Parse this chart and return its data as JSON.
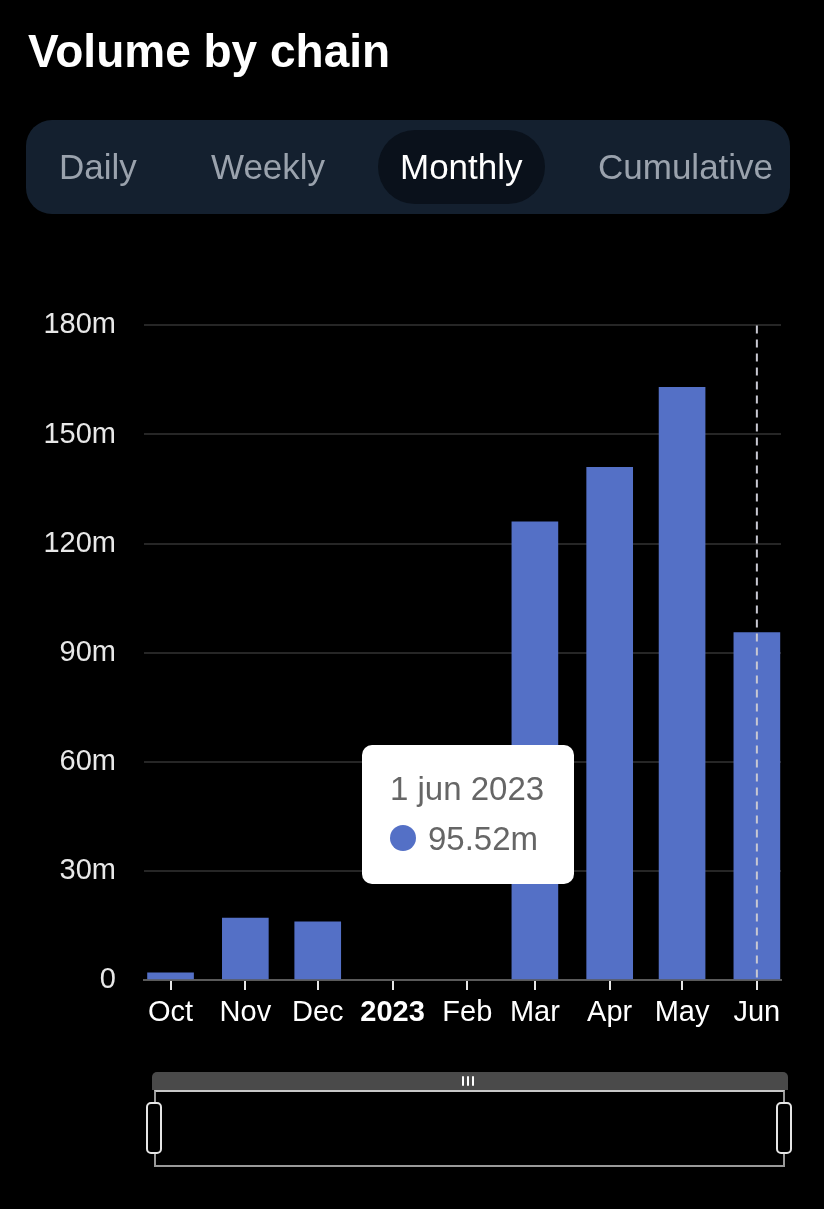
{
  "chart_data": {
    "type": "bar",
    "title": "Volume by chain",
    "x": [
      "2022-10-01",
      "2022-11-01",
      "2022-12-01",
      "2023-01-01",
      "2023-02-01",
      "2023-03-01",
      "2023-04-01",
      "2023-05-01",
      "2023-06-01"
    ],
    "values": [
      2,
      17,
      16,
      null,
      null,
      126,
      141,
      163,
      95.52
    ],
    "color": "#5470c6",
    "xlim": [
      "2022-09-20",
      "2023-06-11"
    ],
    "xticks": [
      {
        "value": "2022-10-01",
        "label": "Oct"
      },
      {
        "value": "2022-11-01",
        "label": "Nov"
      },
      {
        "value": "2022-12-01",
        "label": "Dec"
      },
      {
        "value": "2023-01-01",
        "label": "2023"
      },
      {
        "value": "2023-02-01",
        "label": "Feb"
      },
      {
        "value": "2023-03-01",
        "label": "Mar"
      },
      {
        "value": "2023-04-01",
        "label": "Apr"
      },
      {
        "value": "2023-05-01",
        "label": "May"
      },
      {
        "value": "2023-06-01",
        "label": "Jun"
      }
    ],
    "ylim": [
      0,
      180
    ],
    "yticks": [
      0,
      {
        "value": 30,
        "label": "30m"
      },
      {
        "value": 60,
        "label": "60m"
      },
      {
        "value": 90,
        "label": "90m"
      },
      {
        "value": 120,
        "label": "120m"
      },
      {
        "value": 150,
        "label": "150m"
      },
      {
        "value": 180,
        "label": "180m"
      }
    ],
    "grid": "y",
    "ref_lines": [
      {
        "axis": "x",
        "value": "2023-06-01",
        "color": "#c8c8d2",
        "line_style": "dashed"
      }
    ],
    "annotations": [
      "Daily",
      "Weekly",
      "Monthly",
      "Cumulative",
      "1 jun 2023",
      "95.52m"
    ]
  }
}
